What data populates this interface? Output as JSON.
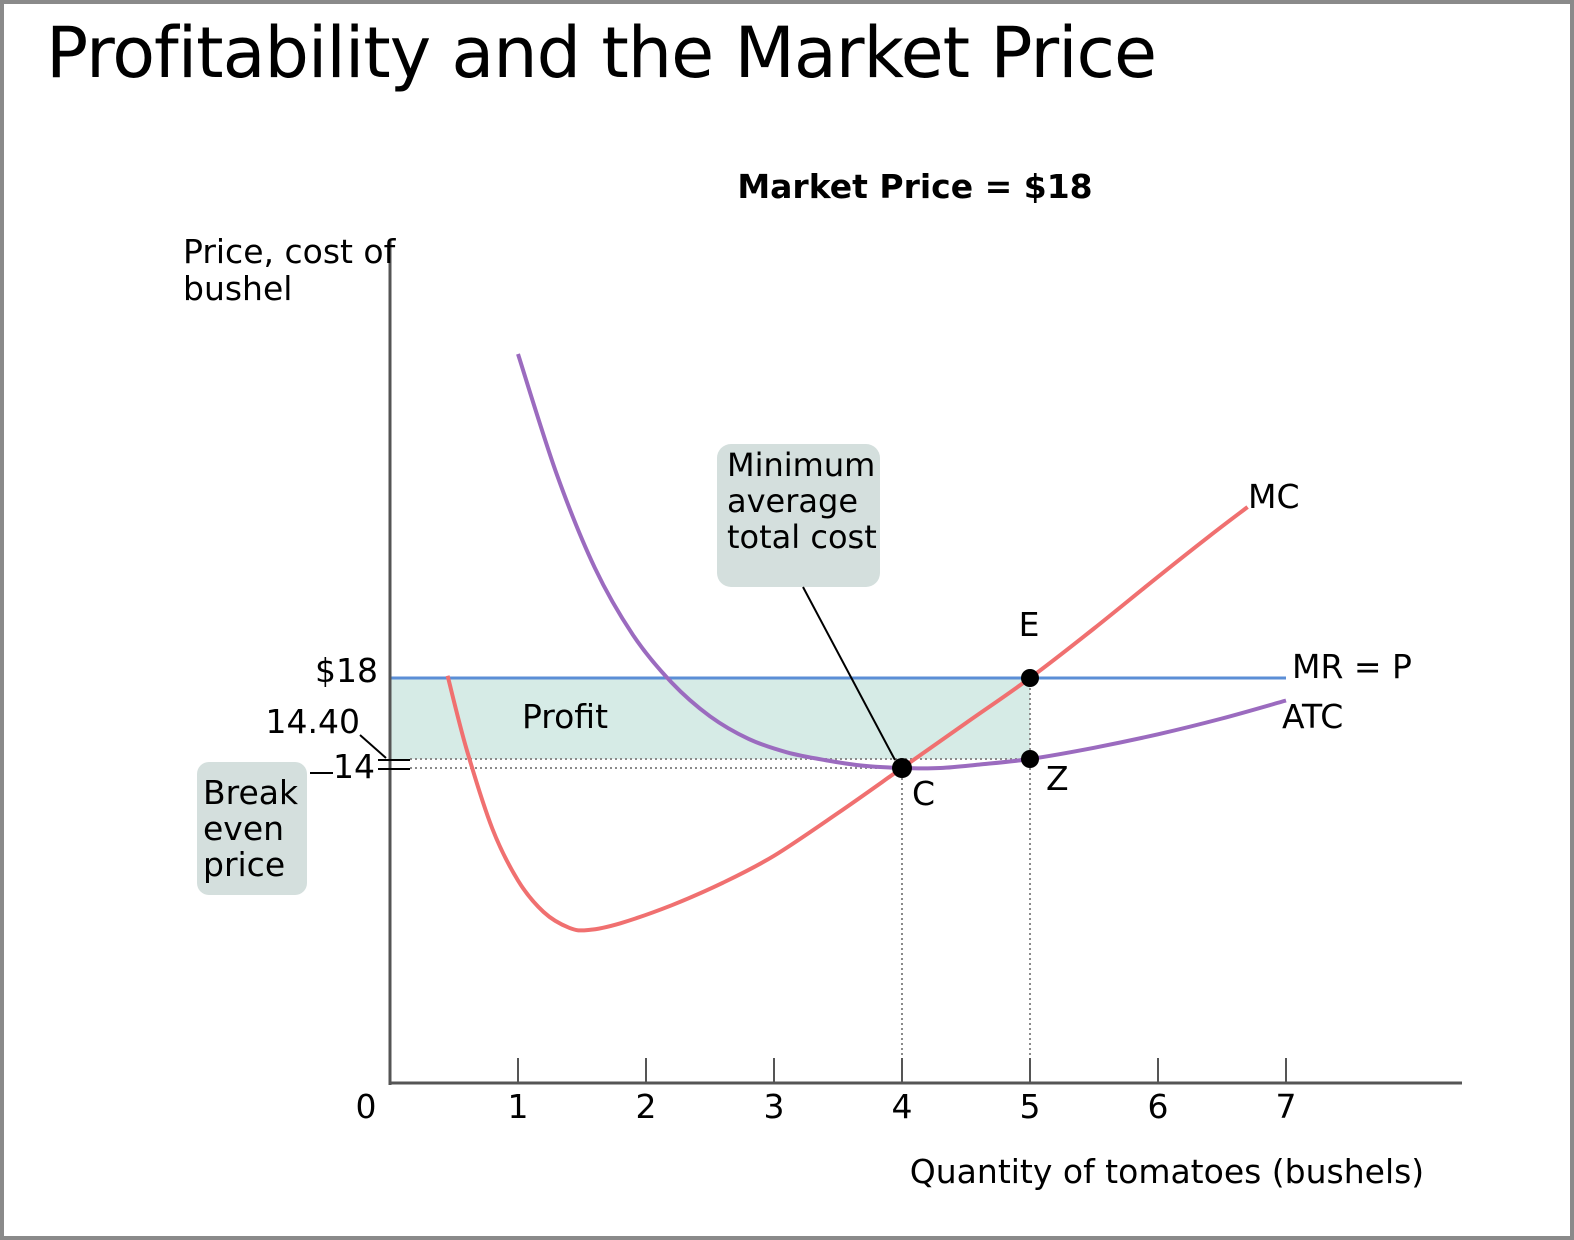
{
  "slide": {
    "title": "Profitability and the Market Price"
  },
  "chart_data": {
    "type": "line",
    "title": "Market Price = $18",
    "ylabel": [
      "Price, cost of",
      "bushel"
    ],
    "xlabel": "Quantity of tomatoes (bushels)",
    "origin_label": "0",
    "x_ticks": [
      1,
      2,
      3,
      4,
      5,
      6,
      7
    ],
    "xlim": [
      0,
      8.5
    ],
    "ylim": [
      0,
      30
    ],
    "y_tick_labels": [
      {
        "value": 18,
        "label": "$18"
      },
      {
        "value": 14.4,
        "label": "14.40"
      },
      {
        "value": 14,
        "label": "14"
      }
    ],
    "series": [
      {
        "name": "MC",
        "color": "#f07070",
        "points": [
          [
            0.45,
            18.1
          ],
          [
            0.6,
            14.8
          ],
          [
            0.8,
            11.3
          ],
          [
            1.0,
            9.0
          ],
          [
            1.2,
            7.6
          ],
          [
            1.4,
            6.9
          ],
          [
            1.55,
            6.8
          ],
          [
            1.8,
            7.1
          ],
          [
            2.2,
            7.9
          ],
          [
            2.6,
            8.9
          ],
          [
            3.0,
            10.1
          ],
          [
            3.5,
            12.0
          ],
          [
            4.0,
            14.0
          ],
          [
            4.5,
            16.0
          ],
          [
            5.0,
            18.0
          ],
          [
            5.5,
            20.2
          ],
          [
            6.0,
            22.5
          ],
          [
            6.4,
            24.3
          ],
          [
            6.7,
            25.6
          ]
        ]
      },
      {
        "name": "ATC",
        "color": "#9b6bbf",
        "points": [
          [
            1.0,
            32.4
          ],
          [
            1.3,
            27.1
          ],
          [
            1.6,
            22.9
          ],
          [
            1.9,
            19.9
          ],
          [
            2.2,
            17.8
          ],
          [
            2.5,
            16.3
          ],
          [
            2.8,
            15.3
          ],
          [
            3.1,
            14.7
          ],
          [
            3.4,
            14.35
          ],
          [
            3.7,
            14.1
          ],
          [
            4.0,
            14.0
          ],
          [
            4.3,
            14.0
          ],
          [
            4.6,
            14.15
          ],
          [
            5.0,
            14.4
          ],
          [
            5.5,
            14.9
          ],
          [
            6.0,
            15.5
          ],
          [
            6.5,
            16.2
          ],
          [
            7.0,
            17.0
          ]
        ]
      },
      {
        "name": "MR = P",
        "color": "#5b8ed6",
        "y": 18,
        "x_range": [
          0,
          7
        ]
      }
    ],
    "points": [
      {
        "label": "E",
        "x": 5,
        "y": 18
      },
      {
        "label": "C",
        "x": 4,
        "y": 14
      },
      {
        "label": "Z",
        "x": 5,
        "y": 14.4
      }
    ],
    "profit_area": {
      "label": "Profit",
      "x_range": [
        0,
        5
      ],
      "y_range": [
        14.4,
        18
      ],
      "color": "#d6ebe6"
    },
    "annotations": {
      "min_atc": [
        "Minimum",
        "average",
        "total cost"
      ],
      "break_even": [
        "Break",
        "even",
        "price"
      ],
      "box_color": "#d4dfdd"
    },
    "grid": false
  }
}
